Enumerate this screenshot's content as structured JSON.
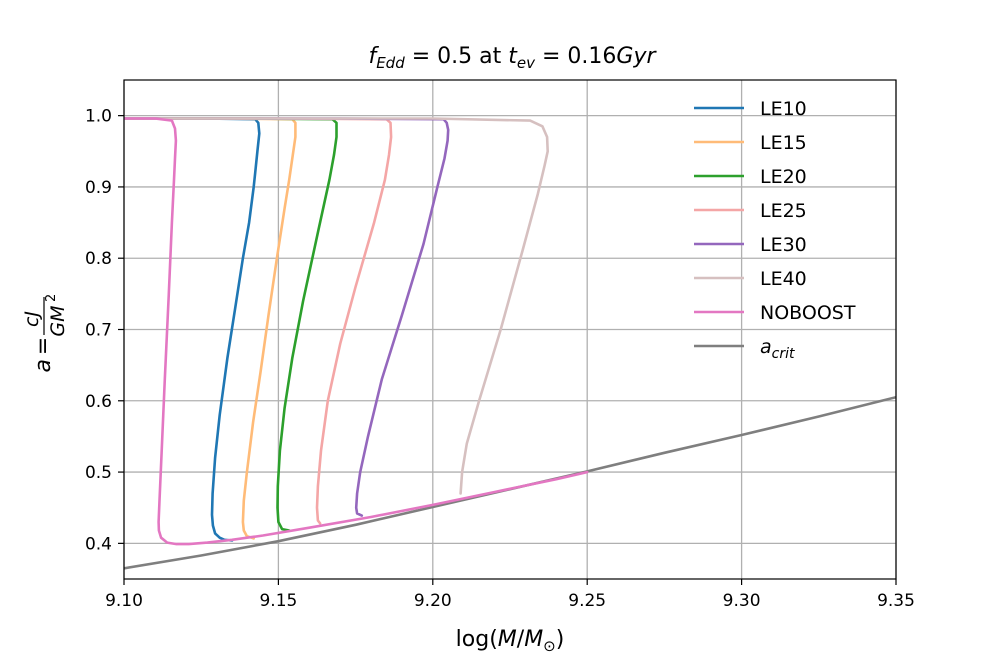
{
  "chart_data": {
    "type": "line",
    "title": {
      "f_sym": "f",
      "f_sub": "Edd",
      "eq_value": " = 0.5 at ",
      "t_sym": "t",
      "t_sub": "ev",
      "t_value": " = 0.16",
      "t_unit": "Gyr"
    },
    "xlabel": {
      "prefix": "log(",
      "var": "M",
      "slash": "/",
      "msym": "M",
      "msub": "⊙",
      "suffix": ")"
    },
    "ylabel": {
      "a": "a",
      "eq": " = ",
      "num": "cJ",
      "den": "GM",
      "den_sup": "2"
    },
    "xlim": [
      9.1,
      9.35
    ],
    "ylim": [
      0.35,
      1.05
    ],
    "grid": true,
    "legend_position": "top-right",
    "x_ticks": [
      {
        "value": 9.1,
        "label": "9.10"
      },
      {
        "value": 9.15,
        "label": "9.15"
      },
      {
        "value": 9.2,
        "label": "9.20"
      },
      {
        "value": 9.25,
        "label": "9.25"
      },
      {
        "value": 9.3,
        "label": "9.30"
      },
      {
        "value": 9.35,
        "label": "9.35"
      }
    ],
    "y_ticks": [
      {
        "value": 0.4,
        "label": "0.4"
      },
      {
        "value": 0.5,
        "label": "0.5"
      },
      {
        "value": 0.6,
        "label": "0.6"
      },
      {
        "value": 0.7,
        "label": "0.7"
      },
      {
        "value": 0.8,
        "label": "0.8"
      },
      {
        "value": 0.9,
        "label": "0.9"
      },
      {
        "value": 1.0,
        "label": "1.0"
      }
    ],
    "series": [
      {
        "name": "LE10",
        "color": "#1f77b4",
        "x": [
          9.1,
          9.125,
          9.1425,
          9.1435,
          9.1438,
          9.1432,
          9.1425,
          9.142,
          9.1405,
          9.1385,
          9.136,
          9.1335,
          9.131,
          9.1295,
          9.1287,
          9.1285,
          9.1288,
          9.1295,
          9.131,
          9.1325,
          9.135
        ],
        "y": [
          0.996,
          0.996,
          0.995,
          0.99,
          0.975,
          0.95,
          0.92,
          0.9,
          0.85,
          0.8,
          0.73,
          0.66,
          0.58,
          0.52,
          0.47,
          0.44,
          0.425,
          0.414,
          0.408,
          0.405,
          0.404
        ]
      },
      {
        "name": "LE15",
        "color": "#ffbb78",
        "x": [
          9.1,
          9.13,
          9.1545,
          9.1555,
          9.1555,
          9.1545,
          9.1535,
          9.152,
          9.1495,
          9.1468,
          9.1442,
          9.1418,
          9.1398,
          9.1388,
          9.1385,
          9.1388,
          9.1398,
          9.142
        ],
        "y": [
          0.996,
          0.996,
          0.995,
          0.99,
          0.97,
          0.94,
          0.91,
          0.87,
          0.8,
          0.72,
          0.64,
          0.57,
          0.5,
          0.46,
          0.43,
          0.418,
          0.41,
          0.407
        ]
      },
      {
        "name": "LE20",
        "color": "#2ca02c",
        "x": [
          9.1,
          9.14,
          9.1675,
          9.1688,
          9.1688,
          9.168,
          9.1665,
          9.163,
          9.158,
          9.1545,
          9.152,
          9.1505,
          9.1498,
          9.1497,
          9.15,
          9.1512,
          9.1535
        ],
        "y": [
          0.996,
          0.996,
          0.995,
          0.99,
          0.97,
          0.945,
          0.91,
          0.84,
          0.74,
          0.66,
          0.59,
          0.53,
          0.48,
          0.45,
          0.43,
          0.42,
          0.418
        ]
      },
      {
        "name": "LE25",
        "color": "#f4a6a6",
        "x": [
          9.1,
          9.15,
          9.185,
          9.1863,
          9.1865,
          9.1858,
          9.1845,
          9.181,
          9.175,
          9.17,
          9.166,
          9.1638,
          9.1628,
          9.1625,
          9.1628,
          9.1635
        ],
        "y": [
          0.996,
          0.996,
          0.995,
          0.99,
          0.97,
          0.945,
          0.91,
          0.85,
          0.76,
          0.68,
          0.6,
          0.53,
          0.48,
          0.45,
          0.432,
          0.428
        ]
      },
      {
        "name": "LE30",
        "color": "#9467bd",
        "x": [
          9.1,
          9.17,
          9.2035,
          9.2045,
          9.205,
          9.2048,
          9.2038,
          9.2015,
          9.197,
          9.19,
          9.1835,
          9.179,
          9.1765,
          9.1755,
          9.1752,
          9.1755,
          9.177
        ],
        "y": [
          0.996,
          0.996,
          0.995,
          0.99,
          0.98,
          0.965,
          0.94,
          0.9,
          0.82,
          0.72,
          0.63,
          0.55,
          0.5,
          0.47,
          0.45,
          0.442,
          0.439
        ]
      },
      {
        "name": "LE40",
        "color": "#d6c0c0",
        "x": [
          9.1,
          9.2,
          9.2315,
          9.2355,
          9.237,
          9.2372,
          9.2362,
          9.234,
          9.229,
          9.222,
          9.215,
          9.211,
          9.2095,
          9.209
        ],
        "y": [
          0.996,
          0.996,
          0.993,
          0.985,
          0.97,
          0.95,
          0.93,
          0.89,
          0.81,
          0.7,
          0.6,
          0.54,
          0.5,
          0.47
        ]
      },
      {
        "name": "NOBOOST",
        "color": "#e377c2",
        "x": [
          9.1,
          9.11,
          9.1155,
          9.1165,
          9.1168,
          9.1165,
          9.1162,
          9.1155,
          9.1145,
          9.1132,
          9.1122,
          9.1115,
          9.1112,
          9.1113,
          9.112,
          9.114,
          9.117,
          9.121,
          9.127,
          9.135,
          9.145,
          9.16,
          9.18,
          9.2,
          9.22,
          9.24,
          9.25
        ],
        "y": [
          0.996,
          0.996,
          0.993,
          0.982,
          0.965,
          0.94,
          0.91,
          0.85,
          0.75,
          0.63,
          0.53,
          0.46,
          0.43,
          0.418,
          0.408,
          0.401,
          0.399,
          0.399,
          0.401,
          0.405,
          0.411,
          0.422,
          0.437,
          0.454,
          0.472,
          0.49,
          0.5
        ]
      },
      {
        "name": "a_crit",
        "label_main": "a",
        "label_sub": "crit",
        "color": "#7f7f7f",
        "x": [
          9.1,
          9.125,
          9.15,
          9.175,
          9.2,
          9.225,
          9.25,
          9.275,
          9.3,
          9.325,
          9.35
        ],
        "y": [
          0.365,
          0.383,
          0.403,
          0.426,
          0.451,
          0.476,
          0.501,
          0.527,
          0.552,
          0.578,
          0.605
        ]
      }
    ]
  }
}
